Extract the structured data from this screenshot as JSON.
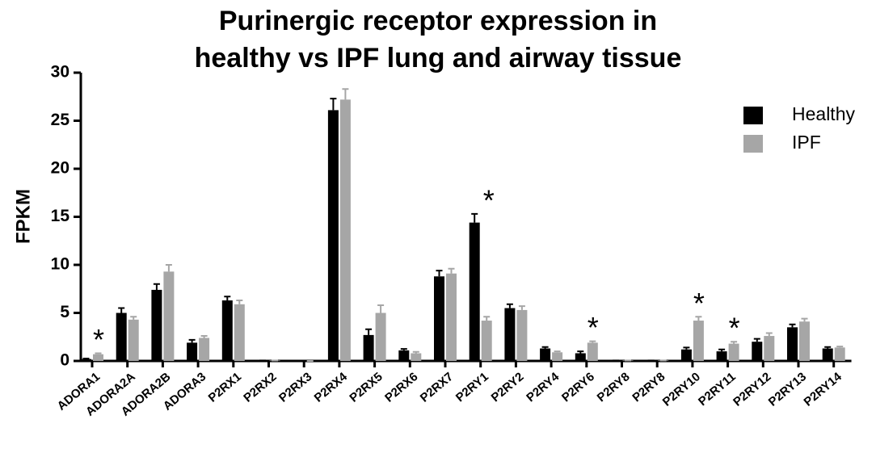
{
  "chart_data": {
    "type": "bar",
    "title": [
      "Purinergic receptor expression in",
      "healthy vs IPF lung and airway tissue"
    ],
    "y_label": "FPKM",
    "categories": [
      "ADORA1",
      "ADORA2A",
      "ADORA2B",
      "ADORA3",
      "P2RX1",
      "P2RX2",
      "P2RX3",
      "P2RX4",
      "P2RX5",
      "P2RX6",
      "P2RX7",
      "P2RY1",
      "P2RY2",
      "P2RY4",
      "P2RY6",
      "P2RY8",
      "P2RY8",
      "P2RY10",
      "P2RY11",
      "P2RY12",
      "P2RY13",
      "P2RY14"
    ],
    "series": [
      {
        "name": "Healthy",
        "color": "#000000",
        "values": [
          0.2,
          5.0,
          7.4,
          1.9,
          6.3,
          0.05,
          0,
          26.1,
          2.7,
          1.1,
          8.8,
          14.4,
          5.5,
          1.3,
          0.8,
          0.05,
          0.05,
          1.2,
          1.0,
          2.0,
          3.5,
          1.3
        ],
        "errors": [
          0.05,
          0.5,
          0.6,
          0.3,
          0.4,
          0,
          0,
          1.2,
          0.6,
          0.15,
          0.6,
          0.9,
          0.4,
          0.15,
          0.2,
          0,
          0,
          0.2,
          0.2,
          0.3,
          0.3,
          0.15
        ]
      },
      {
        "name": "IPF",
        "color": "#a6a6a6",
        "values": [
          0.7,
          4.3,
          9.3,
          2.4,
          5.9,
          0.05,
          0,
          27.2,
          5.0,
          0.8,
          9.1,
          4.2,
          5.3,
          0.9,
          1.9,
          0.05,
          0.05,
          4.2,
          1.8,
          2.6,
          4.1,
          1.4
        ],
        "errors": [
          0.1,
          0.3,
          0.7,
          0.2,
          0.4,
          0,
          0,
          1.1,
          0.8,
          0.15,
          0.5,
          0.4,
          0.4,
          0.1,
          0.15,
          0,
          0,
          0.4,
          0.2,
          0.3,
          0.3,
          0.1
        ]
      }
    ],
    "significance": [
      "*",
      null,
      null,
      null,
      null,
      null,
      null,
      null,
      null,
      null,
      null,
      "*",
      null,
      null,
      "*",
      null,
      null,
      "*",
      "*",
      null,
      null,
      null
    ],
    "ylim": [
      0,
      30
    ],
    "yticks": [
      0,
      5,
      10,
      15,
      20,
      25,
      30
    ],
    "legend": "top-right"
  }
}
